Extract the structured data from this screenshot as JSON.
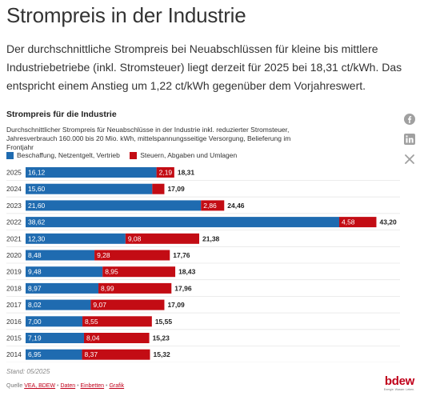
{
  "page": {
    "title": "Strompreis in der Industrie",
    "intro": "Der durchschnittliche Strompreis bei Neuabschlüssen für kleine bis mittlere Industrie­betriebe (inkl. Stromsteuer) liegt derzeit für 2025 bei 18,31 ct/kWh. Das entspricht ei­nem Anstieg um 1,22 ct/kWh gegenüber dem Vorjahreswert."
  },
  "share": {
    "facebook_icon": "facebook-icon",
    "linkedin_icon": "linkedin-icon",
    "x_icon": "x-icon"
  },
  "chart_data": {
    "type": "bar",
    "orientation": "horizontal",
    "stacked": true,
    "title": "Strompreis für die Industrie",
    "subtitle": "Durchschnittlicher Strompreis für Neuabschlüsse in der Industrie inkl. reduzierter Stromsteuer, Jahresverbrauch 160.000 bis 20 Mio. kWh, mittelspannungsseitige Versorgung, Belieferung im Frontjahr",
    "legend_position": "top-left",
    "grid": false,
    "xlim": [
      0,
      46
    ],
    "categories": [
      "2025",
      "2024",
      "2023",
      "2022",
      "2021",
      "2020",
      "2019",
      "2018",
      "2017",
      "2016",
      "2015",
      "2014"
    ],
    "series": [
      {
        "name": "Beschaffung, Netzentgelt, Vertrieb",
        "color": "#1f6bb0",
        "values": [
          16.12,
          15.6,
          21.6,
          38.62,
          12.3,
          8.48,
          9.48,
          8.97,
          8.02,
          7.0,
          7.19,
          6.95
        ],
        "labels": [
          "16,12",
          "15,60",
          "21,60",
          "38,62",
          "12,30",
          "8,48",
          "9,48",
          "8,97",
          "8,02",
          "7,00",
          "7,19",
          "6,95"
        ]
      },
      {
        "name": "Steuern, Abgaben und Umlagen",
        "color": "#c30c14",
        "values": [
          2.19,
          1.49,
          2.86,
          4.58,
          9.08,
          9.28,
          8.95,
          8.99,
          9.07,
          8.55,
          8.04,
          8.37
        ],
        "labels": [
          "2,19",
          "",
          "2,86",
          "4,58",
          "9,08",
          "9,28",
          "8,95",
          "8,99",
          "9,07",
          "8,55",
          "8,04",
          "8,37"
        ]
      }
    ],
    "totals": [
      "18,31",
      "17,09",
      "24,46",
      "43,20",
      "21,38",
      "17,76",
      "18,43",
      "17,96",
      "17,09",
      "15,55",
      "15,23",
      "15,32"
    ]
  },
  "footer": {
    "stand": "Stand: 05/2025",
    "sources_prefix": "Quelle",
    "source_link": "VEA, BDEW",
    "bullet": "•",
    "data_link": "Daten",
    "embed_link": "Einbetten",
    "graphic_link": "Grafik",
    "logo": "bdew",
    "logo_tagline": "Energie. Wasser. Leben."
  }
}
